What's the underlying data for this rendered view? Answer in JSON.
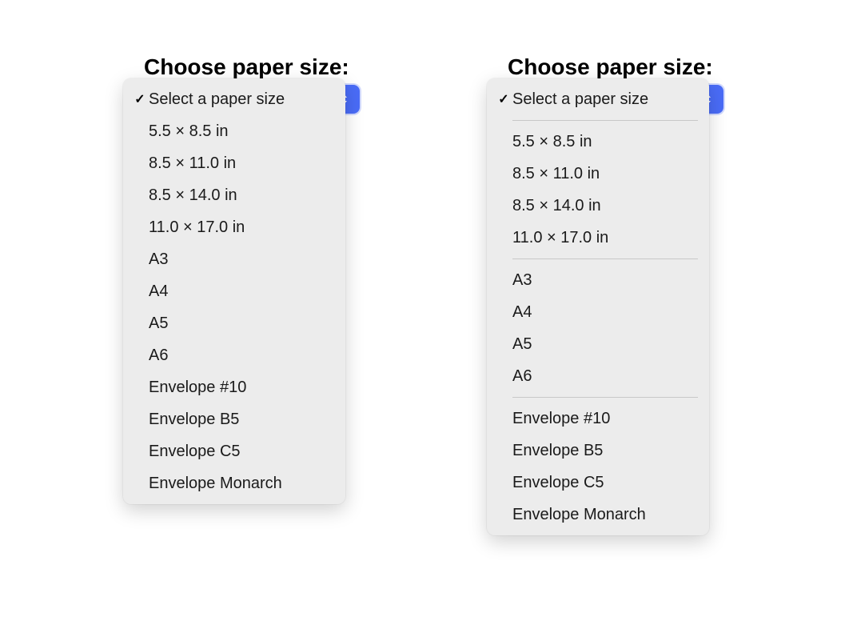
{
  "heading": "Choose paper size:",
  "selected_label": "Select a paper size",
  "check_glyph": "✓",
  "colors": {
    "page_bg": "#ffffff",
    "dropdown_bg": "#ececec",
    "separator": "#c8c8c8",
    "text": "#1a1a1a",
    "accent_button": "#4a6cf7"
  },
  "left": {
    "items": [
      "Select a paper size",
      "5.5 × 8.5 in",
      "8.5 × 11.0 in",
      "8.5 × 14.0 in",
      "11.0 × 17.0 in",
      "A3",
      "A4",
      "A5",
      "A6",
      "Envelope #10",
      "Envelope B5",
      "Envelope C5",
      "Envelope Monarch"
    ]
  },
  "right": {
    "groups": [
      [
        "Select a paper size"
      ],
      [
        "5.5 × 8.5 in",
        "8.5 × 11.0 in",
        "8.5 × 14.0 in",
        "11.0 × 17.0 in"
      ],
      [
        "A3",
        "A4",
        "A5",
        "A6"
      ],
      [
        "Envelope #10",
        "Envelope B5",
        "Envelope C5",
        "Envelope Monarch"
      ]
    ]
  }
}
